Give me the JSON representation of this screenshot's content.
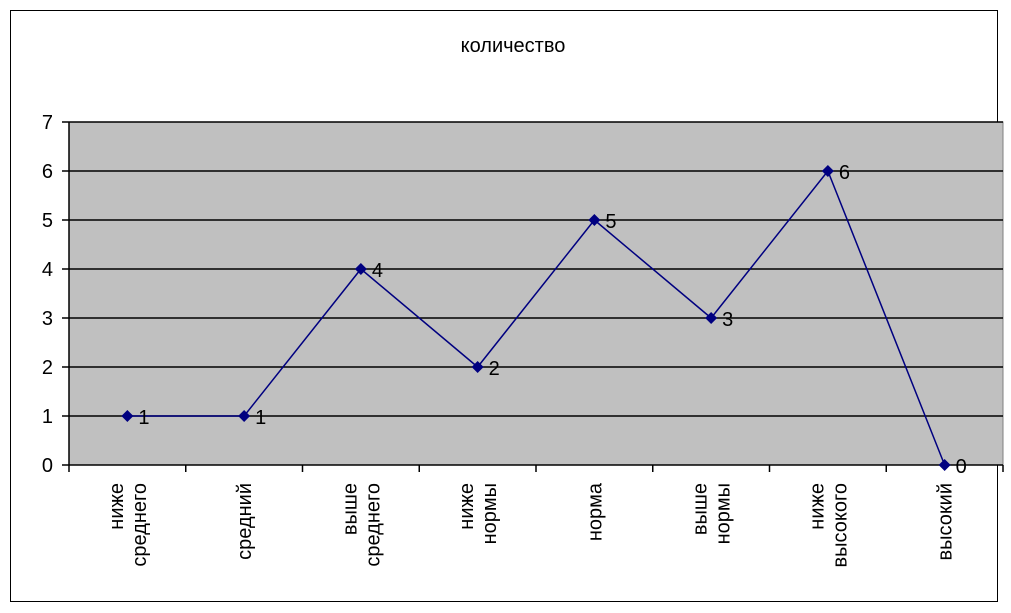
{
  "chart_data": {
    "type": "line",
    "title": "количество",
    "categories": [
      [
        "ниже",
        "среднего"
      ],
      [
        "средний"
      ],
      [
        "выше",
        "среднего"
      ],
      [
        "ниже",
        "нормы"
      ],
      [
        "норма"
      ],
      [
        "выше",
        "нормы"
      ],
      [
        "ниже",
        "высокого"
      ],
      [
        "высокий"
      ]
    ],
    "series": [
      {
        "values": [
          1,
          1,
          4,
          2,
          5,
          3,
          6,
          0
        ]
      }
    ],
    "ylim": [
      0,
      7
    ],
    "yticks": [
      0,
      1,
      2,
      3,
      4,
      5,
      6,
      7
    ],
    "grid": true,
    "data_labels": true,
    "colors": {
      "plot_background": "#c0c0c0",
      "line": "#000080",
      "gridline": "#000000"
    }
  }
}
